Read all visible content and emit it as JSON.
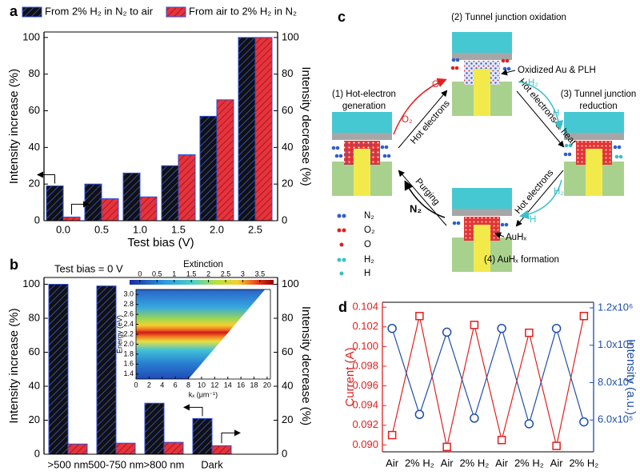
{
  "chart_data": [
    {
      "type": "bar",
      "label": "a",
      "xlabel": "Test bias (V)",
      "ylabel": "Intensity increase (%)",
      "y2label": "Intensity decrease (%)",
      "categories": [
        "0.0",
        "0.5",
        "1.0",
        "1.5",
        "2.0",
        "2.5"
      ],
      "series": [
        {
          "name": "From 2% H₂ in N₂ to air",
          "color": "#111111",
          "hatch": "#3b5bd6",
          "values": [
            19,
            20,
            26,
            30,
            57,
            100
          ]
        },
        {
          "name": "From air to 2% H₂ in N₂",
          "color": "#e8323c",
          "hatch": "#8b1a1a",
          "axis": "y2",
          "values": [
            2,
            12,
            13,
            36,
            66,
            100
          ]
        }
      ],
      "ylim": [
        0,
        103
      ],
      "yticks": [
        0,
        20,
        40,
        60,
        80,
        100
      ],
      "y2lim": [
        0,
        103
      ],
      "y2ticks": [
        0,
        20,
        40,
        60,
        80,
        100
      ],
      "legend": "top"
    },
    {
      "type": "bar",
      "label": "b",
      "annotation": "Test bias = 0 V",
      "ylabel": "Intensity increase (%)",
      "y2label": "Intensity decrease (%)",
      "categories": [
        ">500 nm",
        "500-750 nm",
        ">800 nm",
        "Dark"
      ],
      "series": [
        {
          "color": "#111111",
          "hatch": "#3b5bd6",
          "values": [
            100,
            99,
            30,
            21
          ]
        },
        {
          "color": "#e8323c",
          "hatch": "#8b1a1a",
          "axis": "y2",
          "values": [
            6,
            6.5,
            7,
            5
          ]
        }
      ],
      "ylim": [
        0,
        104
      ],
      "yticks": [
        0,
        20,
        40,
        60,
        80,
        100
      ],
      "y2lim": [
        0,
        104
      ],
      "y2ticks": [
        0,
        20,
        40,
        60,
        80,
        100
      ],
      "inset": {
        "type": "heatmap",
        "title": "Extinction",
        "xlabel": "kₓ (μm⁻¹)",
        "ylabel": "Energy (eV)",
        "xlim": [
          0,
          20.5
        ],
        "xticks": [
          0,
          2,
          4,
          6,
          8,
          10,
          12,
          14,
          16,
          18,
          20
        ],
        "ylim": [
          1.3,
          3.1
        ],
        "yticks": [
          1.4,
          1.6,
          1.8,
          {
            "value": 2,
            "label": "2.0"
          },
          2.2,
          2.4,
          2.6,
          2.8,
          {
            "value": 3,
            "label": "3.0"
          }
        ],
        "clim": [
          -0.3,
          3.9
        ],
        "cticks": [
          0,
          0.5,
          1,
          1.5,
          2,
          2.5,
          3,
          3.5
        ]
      }
    },
    {
      "type": "line",
      "label": "d",
      "ylabel": "Current (A)",
      "y2label": "Intensity (a.u.)",
      "categories": [
        "Air",
        "2% H₂",
        "Air",
        "2% H₂",
        "Air",
        "2% H₂",
        "Air",
        "2% H₂"
      ],
      "series": [
        {
          "color": "#e02020",
          "marker": "square",
          "values": [
            0.091,
            0.1031,
            0.0898,
            0.1022,
            0.0905,
            0.1014,
            0.0899,
            0.1031
          ]
        },
        {
          "color": "#1f4fa8",
          "marker": "circle",
          "axis": "y2",
          "values": [
            1090000,
            630000,
            1070000,
            610000,
            1090000,
            580000,
            1090000,
            590000
          ]
        }
      ],
      "ylim": [
        0.0893,
        0.1045
      ],
      "yticks": [
        {
          "value": 0.09,
          "label": "0.090"
        },
        0.092,
        0.094,
        0.096,
        0.098,
        {
          "value": 0.1,
          "label": "0.100"
        },
        0.102,
        0.104
      ],
      "y2lim": [
        430000,
        1230000
      ],
      "y2ticks": [
        {
          "value": 600000,
          "label": "6.0x10⁵"
        },
        {
          "value": 800000,
          "label": "8.0x10⁵"
        },
        {
          "value": 1000000,
          "label": "1.0x10⁶"
        },
        {
          "value": 1200000,
          "label": "1.2x10⁶"
        }
      ]
    }
  ],
  "diagram": {
    "label": "c",
    "stages": [
      {
        "title": [
          "(1) Hot-electron",
          "generation"
        ]
      },
      {
        "title": [
          "(2) Tunnel junction oxidation"
        ],
        "note": "Oxidized Au & PLH"
      },
      {
        "title": [
          "(3) Tunnel junction",
          "reduction"
        ]
      },
      {
        "title": [
          "(4) AuHₓ formation"
        ],
        "note": "AuHₓ"
      }
    ],
    "arrows": [
      {
        "label": "Hot electrons",
        "gas": "O₂",
        "product": "O"
      },
      {
        "label": "Hot electrons & heat",
        "gas": "H₂",
        "product": "H"
      },
      {
        "label": "Hot electrons",
        "gas": "H₂",
        "product": "H"
      },
      {
        "label": "Purging",
        "gas": "N₂"
      }
    ],
    "legend": [
      "N₂",
      "O₂",
      "O",
      "H₂",
      "H"
    ]
  }
}
